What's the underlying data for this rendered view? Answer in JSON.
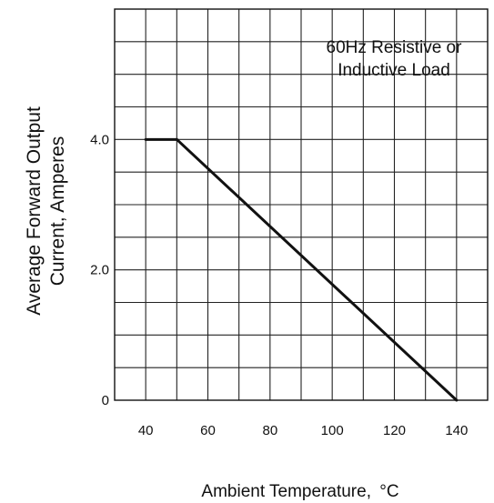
{
  "chart_data": {
    "type": "line",
    "title": "",
    "annotation": [
      "60Hz Resistive or",
      "Inductive Load"
    ],
    "xlabel": "Ambient Temperature,",
    "xlabel_unit": "°C",
    "ylabel": [
      "Average Forward Output",
      "Current, Amperes"
    ],
    "x_ticks": [
      "40",
      "60",
      "80",
      "100",
      "120",
      "140"
    ],
    "y_ticks": [
      "0",
      "2.0",
      "4.0"
    ],
    "xlim": [
      30,
      150
    ],
    "ylim": [
      0,
      6
    ],
    "grid": true,
    "legend": "none",
    "series": [
      {
        "color": "#111111",
        "x": [
          40,
          50,
          140
        ],
        "y": [
          4.0,
          4.0,
          0.0
        ]
      }
    ]
  }
}
